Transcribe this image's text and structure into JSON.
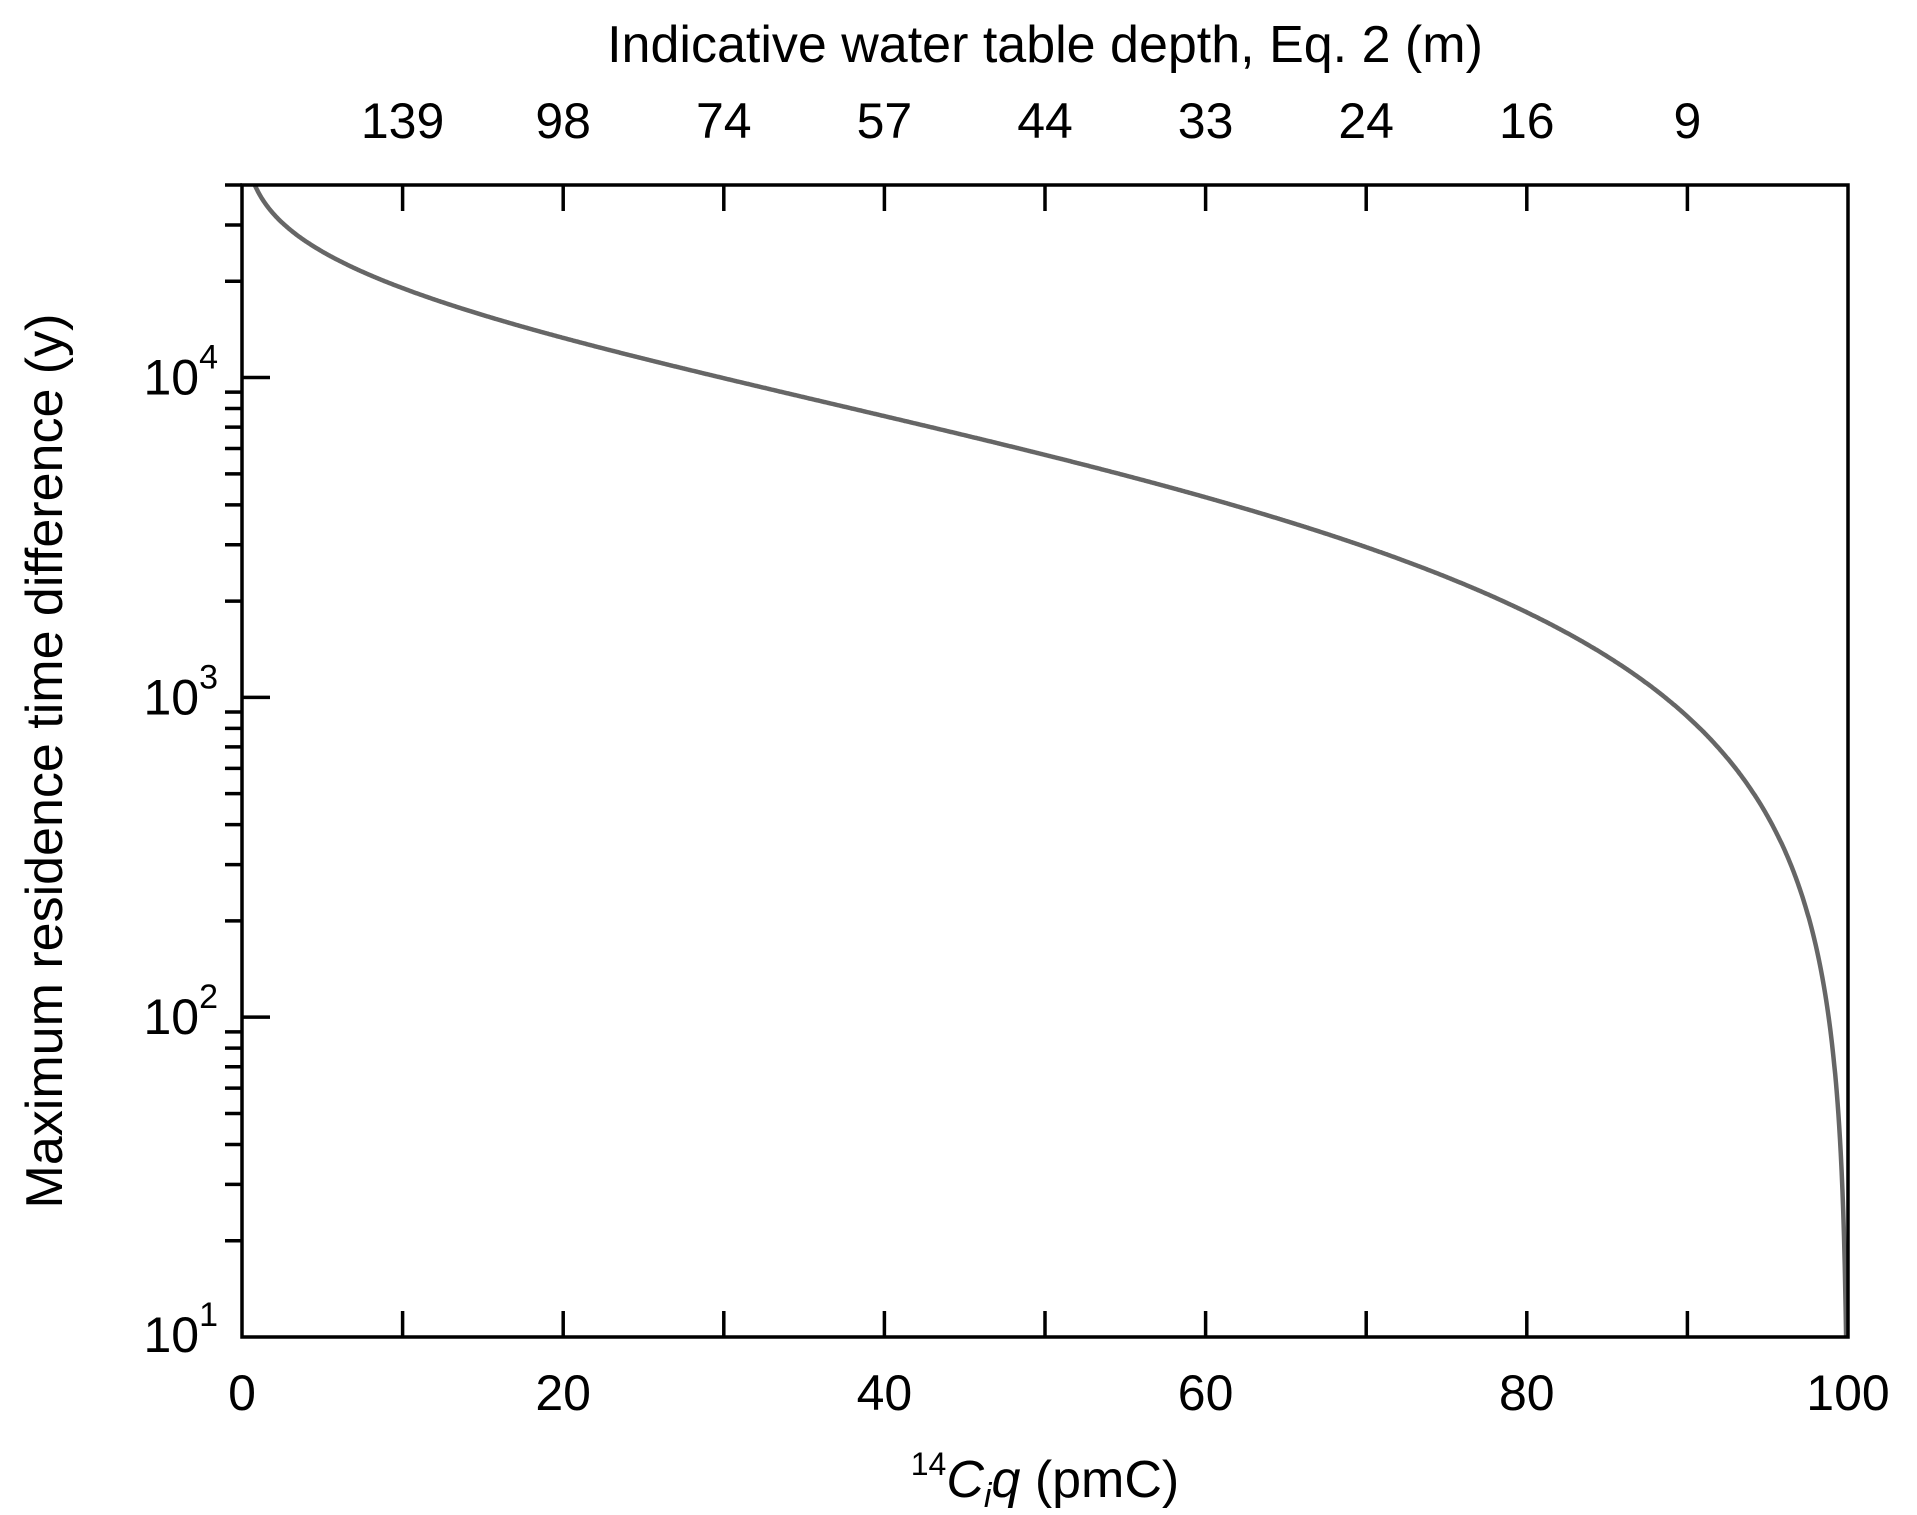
{
  "chart_data": {
    "type": "line",
    "title": "",
    "xlabel": {
      "sup": "14",
      "main": "C",
      "sub": "i",
      "tail": "q",
      "unit": " (pmC)"
    },
    "ylabel": "Maximum residence time difference (y)",
    "top_xlabel": "Indicative water table depth, Eq. 2 (m)",
    "xlim": [
      0,
      100
    ],
    "ylim": [
      10,
      40000
    ],
    "yscale": "log",
    "x_ticks": [
      0,
      20,
      40,
      60,
      80,
      100
    ],
    "x_tick_labels": [
      "0",
      "20",
      "40",
      "60",
      "80",
      "100"
    ],
    "y_ticks": [
      10,
      100,
      1000,
      10000
    ],
    "y_tick_labels": [
      {
        "base": "10",
        "exp": "1"
      },
      {
        "base": "10",
        "exp": "2"
      },
      {
        "base": "10",
        "exp": "3"
      },
      {
        "base": "10",
        "exp": "4"
      }
    ],
    "top_ticks_x": [
      10,
      20,
      30,
      40,
      50,
      60,
      70,
      80,
      90
    ],
    "top_tick_labels": [
      "139",
      "98",
      "74",
      "57",
      "44",
      "33",
      "24",
      "16",
      "9"
    ],
    "series": [
      {
        "name": "residence time difference",
        "color": "#666666",
        "x": [
          1,
          2,
          5,
          10,
          20,
          30,
          40,
          50,
          60,
          70,
          80,
          85,
          90,
          95,
          98,
          99,
          99.5,
          99.88
        ],
        "y": [
          38070,
          32340,
          24770,
          19040,
          13300,
          9950,
          7570,
          5730,
          4220,
          2950,
          1845,
          1345,
          871,
          424,
          167,
          83,
          41,
          10
        ]
      }
    ],
    "grid": false,
    "legend": "none"
  }
}
